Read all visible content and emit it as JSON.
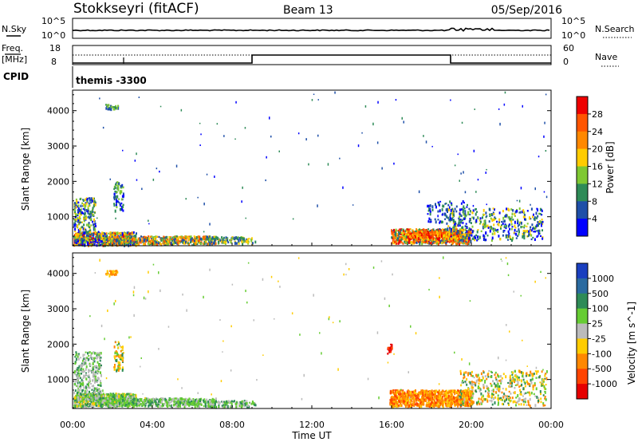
{
  "header": {
    "title": "Stokkseyri (fitACF)",
    "beam": "Beam 13",
    "date": "05/Sep/2016"
  },
  "panels": {
    "noise": {
      "left_label": "N.Sky",
      "left_ticks": [
        "10^5",
        "10^0"
      ],
      "right_label": "N.Search",
      "right_ticks": [
        "10^5",
        "10^0"
      ]
    },
    "freq": {
      "left_label_top": "Freq.",
      "left_label_unit": "[MHz]",
      "left_ticks": [
        "18",
        "8"
      ],
      "right_label": "Nave",
      "right_ticks": [
        "60",
        "0"
      ]
    },
    "cpid": {
      "label": "CPID",
      "value": "themis -3300"
    }
  },
  "chart_data": [
    {
      "type": "heatmap",
      "name": "power",
      "ylabel": "Slant Range [km]",
      "yticks": [
        1000,
        2000,
        3000,
        4000
      ],
      "ylim": [
        180,
        4580
      ],
      "colorbar_label": "Power [dB]",
      "colorbar_ticks": [
        "4",
        "8",
        "12",
        "16",
        "20",
        "24",
        "28"
      ],
      "colors": [
        "#0000ff",
        "#1e4fa8",
        "#2e8b57",
        "#7fc832",
        "#ffcc00",
        "#ff8800",
        "#ff5500",
        "#ee0000"
      ]
    },
    {
      "type": "heatmap",
      "name": "velocity",
      "ylabel": "Slant Range [km]",
      "yticks": [
        1000,
        2000,
        3000,
        4000
      ],
      "ylim": [
        180,
        4580
      ],
      "colorbar_label": "Velocity [m s^-1]",
      "colorbar_ticks": [
        "1000",
        "500",
        "100",
        "25",
        "-25",
        "-100",
        "-500",
        "-1000"
      ],
      "colors": [
        "#1a3fbf",
        "#2a6aa0",
        "#2e8b57",
        "#66cc33",
        "#bbbbbb",
        "#ffcc00",
        "#ff8800",
        "#ff4400",
        "#e60000"
      ]
    }
  ],
  "x_axis": {
    "label": "Time UT",
    "ticks": [
      "00:00",
      "04:00",
      "08:00",
      "12:00",
      "16:00",
      "20:00",
      "00:00"
    ]
  }
}
